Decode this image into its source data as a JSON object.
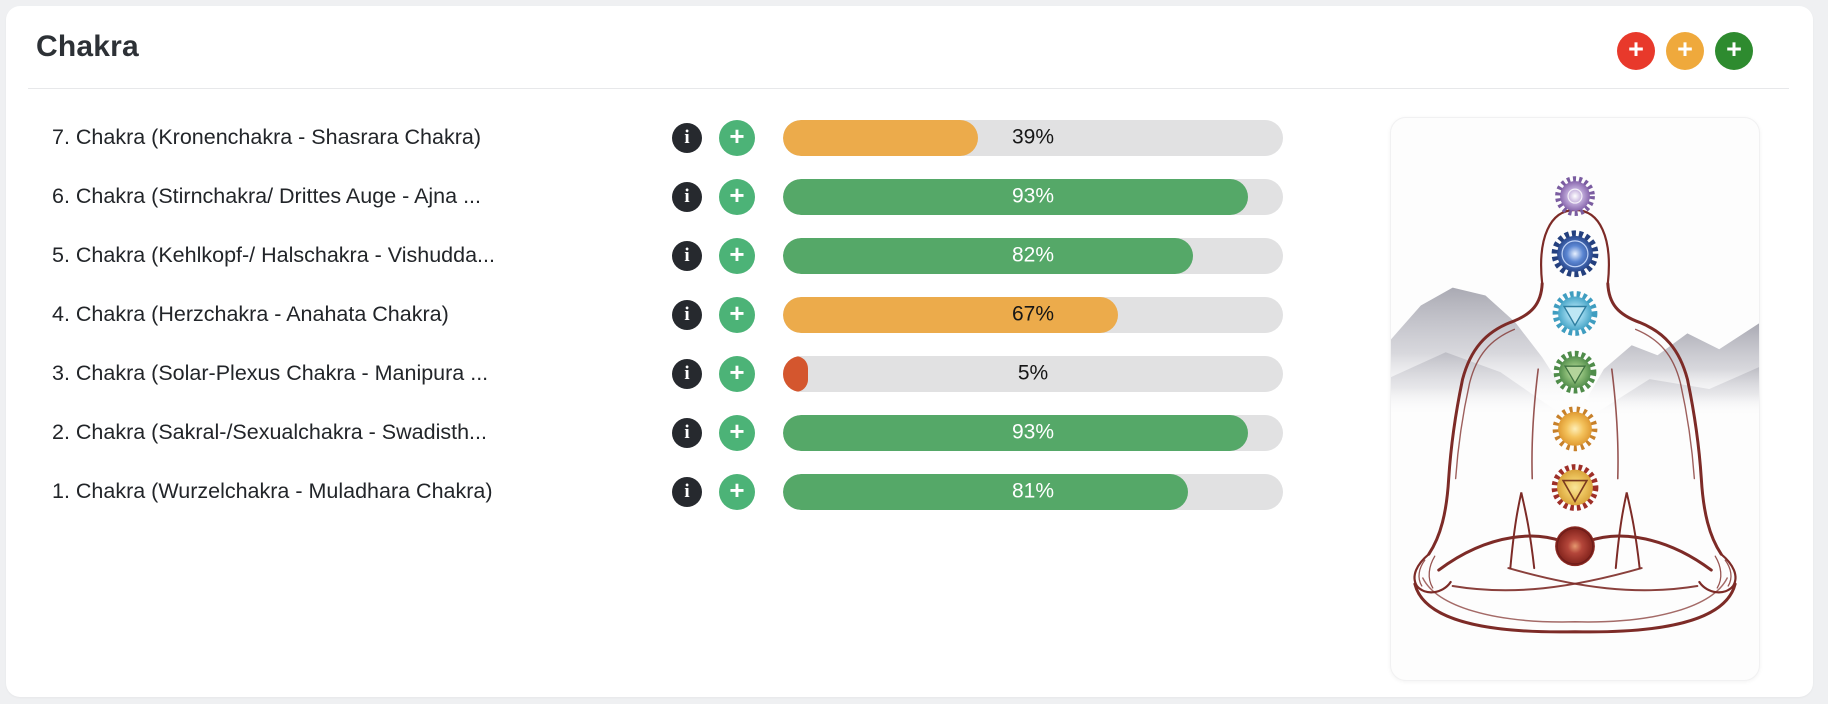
{
  "card": {
    "title": "Chakra"
  },
  "icons": {
    "plus": "+",
    "info": "i"
  },
  "header_buttons": [
    {
      "name": "add-red-button",
      "color": "#e8392b"
    },
    {
      "name": "add-orange-button",
      "color": "#efa93c"
    },
    {
      "name": "add-green-button",
      "color": "#2e8b2f"
    }
  ],
  "track_color": "#e1e1e2",
  "row_icon_colors": {
    "info_bg": "#26292e",
    "plus_bg": "#4cb377"
  },
  "rows": [
    {
      "label": "7. Chakra (Kronenchakra - Shasrara Chakra)",
      "percent": 39,
      "percent_label": "39%",
      "bar_color": "#ecab4b",
      "text_color": "#161616"
    },
    {
      "label": "6. Chakra (Stirnchakra/ Drittes Auge - Ajna ...",
      "percent": 93,
      "percent_label": "93%",
      "bar_color": "#55a868",
      "text_color": "#ffffff"
    },
    {
      "label": "5. Chakra (Kehlkopf-/ Halschakra - Vishudda...",
      "percent": 82,
      "percent_label": "82%",
      "bar_color": "#55a868",
      "text_color": "#ffffff"
    },
    {
      "label": "4. Chakra (Herzchakra - Anahata Chakra)",
      "percent": 67,
      "percent_label": "67%",
      "bar_color": "#ecab4b",
      "text_color": "#161616"
    },
    {
      "label": "3. Chakra (Solar-Plexus Chakra - Manipura ...",
      "percent": 5,
      "percent_label": "5%",
      "bar_color": "#d4562e",
      "text_color": "#161616"
    },
    {
      "label": "2. Chakra (Sakral-/Sexualchakra - Swadisth...",
      "percent": 93,
      "percent_label": "93%",
      "bar_color": "#55a868",
      "text_color": "#ffffff"
    },
    {
      "label": "1. Chakra (Wurzelchakra - Muladhara Chakra)",
      "percent": 81,
      "percent_label": "81%",
      "bar_color": "#55a868",
      "text_color": "#ffffff"
    }
  ],
  "illustration": {
    "name": "meditating-figure-with-chakra-symbols",
    "chakra_colors_top_to_bottom": [
      "#8968ae",
      "#2b4a8f",
      "#49a6c8",
      "#55904e",
      "#e09b33",
      "#d9a43c",
      "#8c2a22"
    ]
  }
}
